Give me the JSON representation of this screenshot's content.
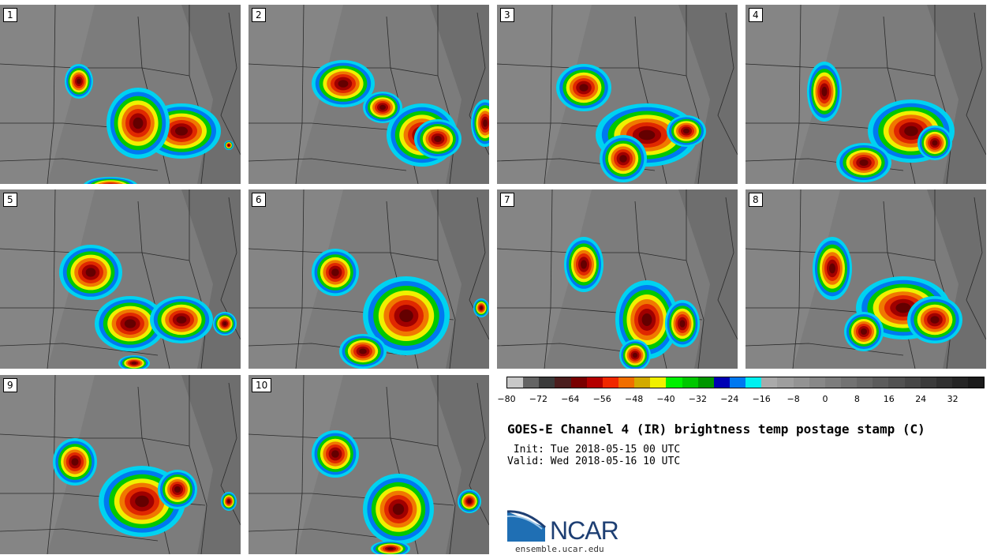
{
  "panels": [
    {
      "label": "1"
    },
    {
      "label": "2"
    },
    {
      "label": "3"
    },
    {
      "label": "4"
    },
    {
      "label": "5"
    },
    {
      "label": "6"
    },
    {
      "label": "7"
    },
    {
      "label": "8"
    },
    {
      "label": "9"
    },
    {
      "label": "10"
    }
  ],
  "colorbar": {
    "colors": [
      "#c8c8c8",
      "#646464",
      "#3a3a3a",
      "#4b1e1e",
      "#780000",
      "#b40000",
      "#f02800",
      "#f06e00",
      "#d2aa00",
      "#f0f000",
      "#00f000",
      "#00c800",
      "#009600",
      "#0000b4",
      "#0078f0",
      "#00f0f0",
      "#aaaaaa",
      "#9e9e9e",
      "#939393",
      "#888888",
      "#7d7d7d",
      "#727272",
      "#676767",
      "#5c5c5c",
      "#515151",
      "#464646",
      "#3b3b3b",
      "#303030",
      "#252525",
      "#1a1a1a"
    ],
    "tick_labels": [
      "−80",
      "−72",
      "−64",
      "−56",
      "−48",
      "−40",
      "−32",
      "−24",
      "−16",
      "−8",
      "0",
      "8",
      "16",
      "24",
      "32"
    ]
  },
  "title": "GOES-E Channel 4 (IR) brightness temp postage stamp (C)",
  "init": " Init: Tue 2018-05-15 00 UTC",
  "valid": "Valid: Wed 2018-05-16 10 UTC",
  "logo": {
    "text": "NCAR",
    "url": "ensemble.ucar.edu"
  }
}
